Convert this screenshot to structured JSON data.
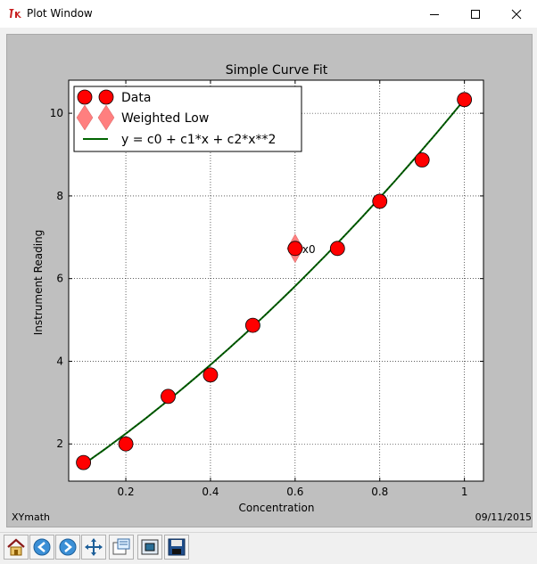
{
  "window": {
    "title": "Plot Window",
    "logo_icon": "tk-feather-icon",
    "minimize_icon": "minimize-icon",
    "maximize_icon": "maximize-icon",
    "close_icon": "close-icon"
  },
  "figure": {
    "left_text": "XYmath",
    "right_text": "09/11/2015",
    "background": "#bfbfbf"
  },
  "toolbar": {
    "buttons": [
      {
        "name": "home-button",
        "icon": "home-icon"
      },
      {
        "name": "back-button",
        "icon": "back-arrow-icon"
      },
      {
        "name": "forward-button",
        "icon": "forward-arrow-icon"
      },
      {
        "name": "pan-button",
        "icon": "pan-arrows-icon"
      },
      {
        "name": "configure-subplots-button",
        "icon": "subplots-icon"
      },
      {
        "name": "zoom-button",
        "icon": "zoom-rect-icon"
      },
      {
        "name": "save-button",
        "icon": "floppy-disk-icon"
      }
    ]
  },
  "chart_data": {
    "type": "scatter",
    "title": "Simple Curve Fit",
    "xlabel": "Concentration",
    "ylabel": "Instrument Reading",
    "xlim": [
      0.065,
      1.045
    ],
    "ylim": [
      1.1,
      10.8
    ],
    "xticks": [
      0.2,
      0.4,
      0.6,
      0.8,
      1
    ],
    "xtick_labels": [
      "0.2",
      "0.4",
      "0.6",
      "0.8",
      "1"
    ],
    "yticks": [
      2,
      4,
      6,
      8,
      10
    ],
    "ytick_labels": [
      "2",
      "4",
      "6",
      "8",
      "10"
    ],
    "grid": true,
    "legend_position": "top-left",
    "series": [
      {
        "name": "Data",
        "kind": "scatter",
        "marker": "circle",
        "color": "#ff0000",
        "x": [
          0.1,
          0.2,
          0.3,
          0.4,
          0.5,
          0.7,
          0.8,
          0.9,
          1.0
        ],
        "y": [
          1.55,
          2.0,
          3.15,
          3.67,
          4.87,
          6.73,
          7.87,
          8.87,
          10.33
        ]
      },
      {
        "name": "Weighted Low",
        "kind": "scatter",
        "marker": "diamond",
        "color": "#ff7f7f",
        "x": [
          0.6
        ],
        "y": [
          6.73
        ],
        "annotations": [
          "x0"
        ]
      },
      {
        "name": "y = c0 + c1*x + c2*x**2",
        "kind": "line",
        "color": "#006400",
        "c0": 0.82,
        "c1": 6.56,
        "c2": 2.95,
        "x_range": [
          0.1,
          1.0
        ]
      }
    ]
  }
}
